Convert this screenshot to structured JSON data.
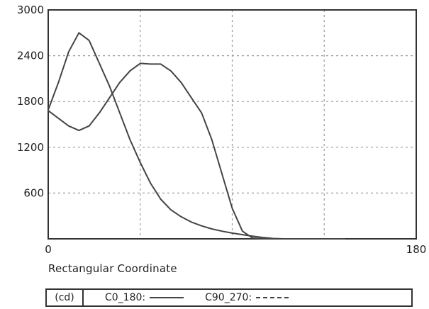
{
  "chart_data": {
    "type": "line",
    "xlabel": "Rectangular Coordinate",
    "ylabel": "",
    "xlim": [
      0,
      180
    ],
    "ylim": [
      0,
      3000
    ],
    "x_ticks": [
      "0",
      "180"
    ],
    "y_ticks": [
      "600",
      "1200",
      "1800",
      "2400",
      "3000"
    ],
    "grid": true,
    "unit_label": "(cd)",
    "series": [
      {
        "name": "C0_180",
        "style": "solid",
        "x": [
          0,
          5,
          10,
          15,
          20,
          25,
          30,
          35,
          40,
          45,
          50,
          55,
          60,
          65,
          70,
          75,
          80,
          85,
          90,
          95,
          100,
          105,
          110,
          115,
          120,
          125,
          130,
          135,
          140,
          145
        ],
        "y": [
          1690,
          2050,
          2450,
          2700,
          2600,
          2300,
          2000,
          1650,
          1300,
          1000,
          730,
          520,
          380,
          290,
          220,
          170,
          130,
          100,
          75,
          55,
          35,
          18,
          5,
          0,
          0,
          0,
          0,
          0,
          0,
          0
        ]
      },
      {
        "name": "C90_270",
        "style": "solid",
        "x": [
          0,
          5,
          10,
          15,
          20,
          25,
          30,
          35,
          40,
          45,
          50,
          55,
          60,
          65,
          70,
          75,
          80,
          85,
          90,
          95,
          100,
          105,
          110,
          115,
          120,
          125,
          130,
          135,
          140,
          145
        ],
        "y": [
          1680,
          1580,
          1480,
          1420,
          1480,
          1650,
          1850,
          2050,
          2200,
          2300,
          2290,
          2290,
          2200,
          2050,
          1850,
          1650,
          1300,
          850,
          400,
          100,
          10,
          0,
          0,
          0,
          0,
          0,
          0,
          0,
          0,
          0
        ]
      }
    ]
  },
  "colors": {
    "grid": "#999999",
    "axes": "#333333",
    "line": "#444444"
  }
}
